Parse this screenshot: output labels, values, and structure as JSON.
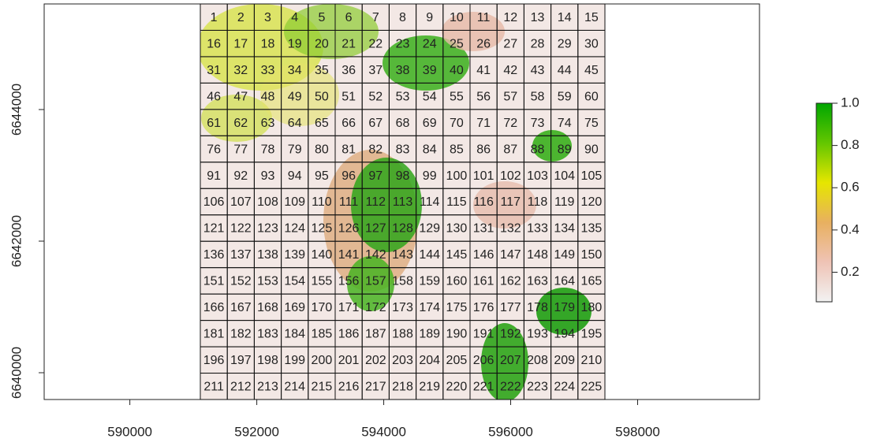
{
  "chart_data": {
    "type": "raster-map",
    "xlim": [
      588650,
      599920
    ],
    "xticks": [
      590000,
      592000,
      594000,
      596000,
      598000
    ],
    "ylim": [
      6639593,
      6645605
    ],
    "yticks": [
      6640000,
      6642000,
      6644000
    ],
    "cell_labels": [
      1,
      2,
      3,
      4,
      5,
      6,
      7,
      8,
      9,
      10,
      11,
      12,
      13,
      14,
      15,
      16,
      17,
      18,
      19,
      20,
      21,
      22,
      23,
      24,
      25,
      26,
      27,
      28,
      29,
      30,
      31,
      32,
      33,
      34,
      35,
      36,
      37,
      38,
      39,
      40,
      41,
      42,
      43,
      44,
      45,
      46,
      47,
      48,
      49,
      50,
      51,
      52,
      53,
      54,
      55,
      56,
      57,
      58,
      59,
      60,
      61,
      62,
      63,
      64,
      65,
      66,
      67,
      68,
      69,
      70,
      71,
      72,
      73,
      74,
      75,
      76,
      77,
      78,
      79,
      80,
      81,
      82,
      83,
      84,
      85,
      86,
      87,
      88,
      89,
      90,
      91,
      92,
      93,
      94,
      95,
      96,
      97,
      98,
      99,
      100,
      101,
      102,
      103,
      104,
      105,
      106,
      107,
      108,
      109,
      110,
      111,
      112,
      113,
      114,
      115,
      116,
      117,
      118,
      119,
      120,
      121,
      122,
      123,
      124,
      125,
      126,
      127,
      128,
      129,
      130,
      131,
      132,
      133,
      134,
      135,
      136,
      137,
      138,
      139,
      140,
      141,
      142,
      143,
      144,
      145,
      146,
      147,
      148,
      149,
      150,
      151,
      152,
      153,
      154,
      155,
      156,
      157,
      158,
      159,
      160,
      161,
      162,
      163,
      164,
      165,
      166,
      167,
      168,
      169,
      170,
      171,
      172,
      173,
      174,
      175,
      176,
      177,
      178,
      179,
      180,
      181,
      182,
      183,
      184,
      185,
      186,
      187,
      188,
      189,
      190,
      191,
      192,
      193,
      194,
      195,
      196,
      197,
      198,
      199,
      200,
      201,
      202,
      203,
      204,
      205,
      206,
      207,
      208,
      209,
      210,
      211,
      212,
      213,
      214,
      215,
      216,
      217,
      218,
      219,
      220,
      221,
      222,
      223,
      224,
      225
    ],
    "legend": {
      "lim": [
        0.06,
        1
      ],
      "ticks": [
        {
          "value": 1,
          "label": "1.0"
        },
        0.8,
        0.6,
        0.4,
        0.2
      ],
      "colors": [
        "#f2f2f2",
        "#efc3b5",
        "#e8b060",
        "#e6e600",
        "#63c600",
        "#00a600"
      ]
    }
  }
}
